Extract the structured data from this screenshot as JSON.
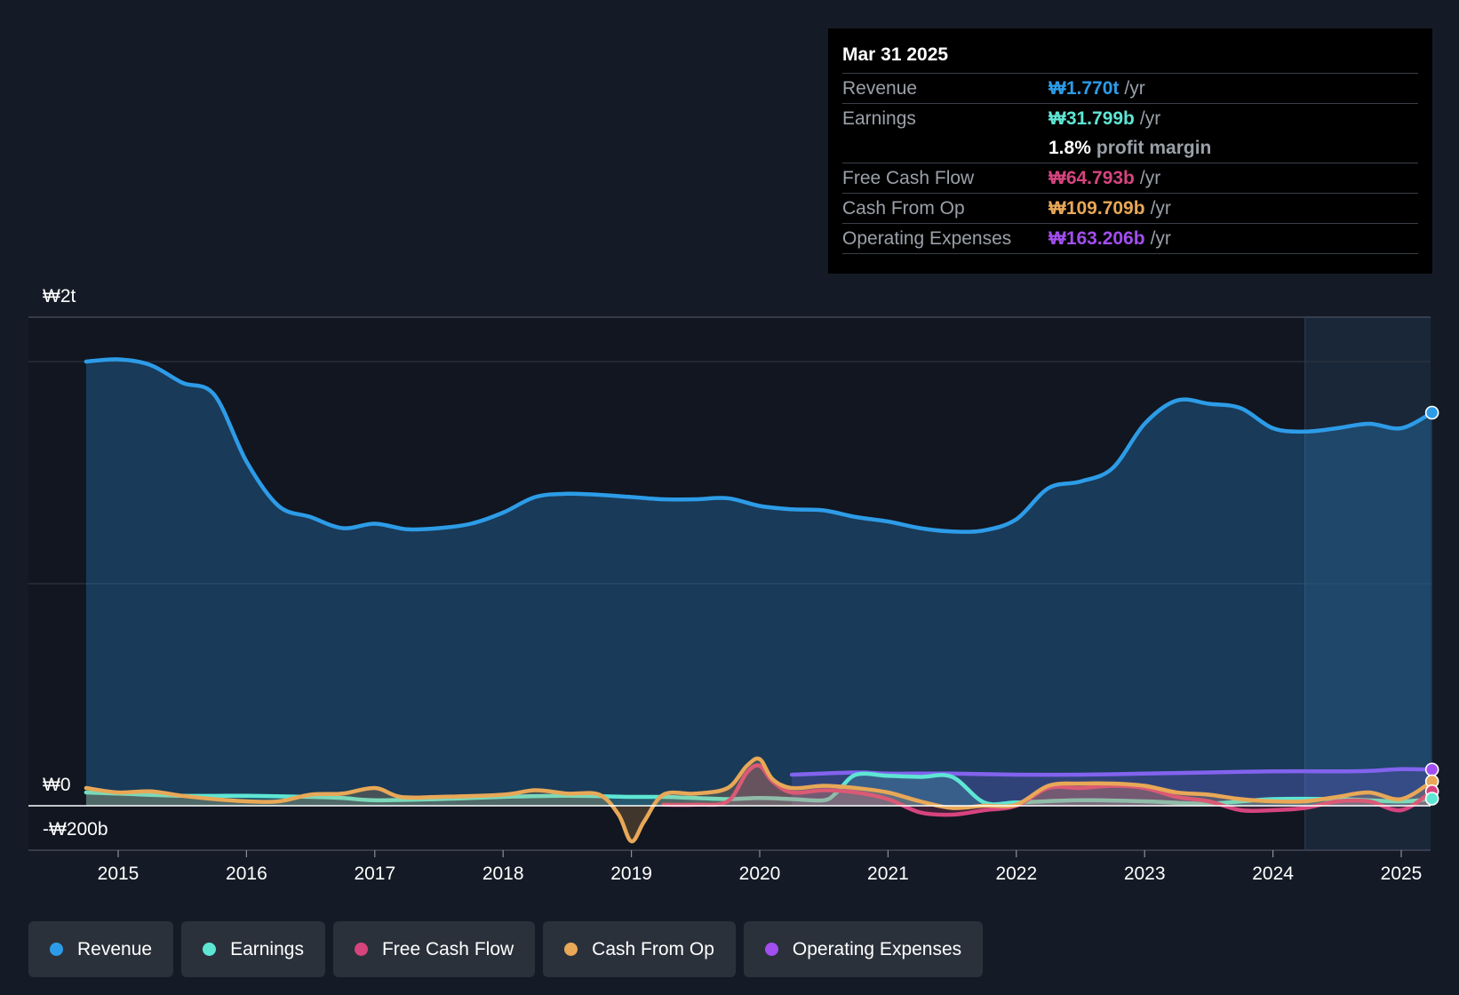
{
  "tooltip": {
    "date": "Mar 31 2025",
    "rows": [
      {
        "label": "Revenue",
        "value": "₩1.770t",
        "unit": "/yr",
        "color": "#2d9ce8"
      },
      {
        "label": "Earnings",
        "value": "₩31.799b",
        "unit": "/yr",
        "color": "#5ee6d4"
      },
      {
        "label": "",
        "value": "1.8%",
        "unit": "profit margin",
        "color": "#ffffff"
      },
      {
        "label": "Free Cash Flow",
        "value": "₩64.793b",
        "unit": "/yr",
        "color": "#d6447e"
      },
      {
        "label": "Cash From Op",
        "value": "₩109.709b",
        "unit": "/yr",
        "color": "#e8a857"
      },
      {
        "label": "Operating Expenses",
        "value": "₩163.206b",
        "unit": "/yr",
        "color": "#a24ef0"
      }
    ]
  },
  "legend": [
    {
      "label": "Revenue",
      "color": "#2d9ce8"
    },
    {
      "label": "Earnings",
      "color": "#5ee6d4"
    },
    {
      "label": "Free Cash Flow",
      "color": "#d6447e"
    },
    {
      "label": "Cash From Op",
      "color": "#e8a857"
    },
    {
      "label": "Operating Expenses",
      "color": "#a24ef0"
    }
  ],
  "chart_data": {
    "type": "line",
    "y_unit": "₩ billions",
    "ylim": [
      -200,
      2200
    ],
    "xlim": [
      2014.3,
      2025.24
    ],
    "y_tick_labels": [
      {
        "value": 2000,
        "label": "₩2t"
      },
      {
        "value": 0,
        "label": "₩0"
      },
      {
        "value": -200,
        "label": "-₩200b"
      }
    ],
    "x_ticks": [
      2015,
      2016,
      2017,
      2018,
      2019,
      2020,
      2021,
      2022,
      2023,
      2024,
      2025
    ],
    "x_tick_labels": [
      "2015",
      "2016",
      "2017",
      "2018",
      "2019",
      "2020",
      "2021",
      "2022",
      "2023",
      "2024",
      "2025"
    ],
    "forecast_shade_start": 2024.25,
    "series": [
      {
        "name": "Revenue",
        "color": "#2d9ce8",
        "area": true,
        "points": [
          [
            2014.75,
            2000
          ],
          [
            2015.0,
            2010
          ],
          [
            2015.25,
            1985
          ],
          [
            2015.5,
            1905
          ],
          [
            2015.75,
            1850
          ],
          [
            2016.0,
            1550
          ],
          [
            2016.25,
            1350
          ],
          [
            2016.5,
            1300
          ],
          [
            2016.75,
            1250
          ],
          [
            2017.0,
            1270
          ],
          [
            2017.25,
            1245
          ],
          [
            2017.5,
            1250
          ],
          [
            2017.75,
            1270
          ],
          [
            2018.0,
            1320
          ],
          [
            2018.25,
            1390
          ],
          [
            2018.5,
            1405
          ],
          [
            2018.75,
            1400
          ],
          [
            2019.0,
            1390
          ],
          [
            2019.25,
            1380
          ],
          [
            2019.5,
            1380
          ],
          [
            2019.75,
            1385
          ],
          [
            2020.0,
            1350
          ],
          [
            2020.25,
            1335
          ],
          [
            2020.5,
            1330
          ],
          [
            2020.75,
            1300
          ],
          [
            2021.0,
            1280
          ],
          [
            2021.25,
            1250
          ],
          [
            2021.5,
            1235
          ],
          [
            2021.75,
            1240
          ],
          [
            2022.0,
            1290
          ],
          [
            2022.25,
            1430
          ],
          [
            2022.5,
            1460
          ],
          [
            2022.75,
            1520
          ],
          [
            2023.0,
            1720
          ],
          [
            2023.25,
            1825
          ],
          [
            2023.5,
            1810
          ],
          [
            2023.75,
            1790
          ],
          [
            2024.0,
            1700
          ],
          [
            2024.25,
            1685
          ],
          [
            2024.5,
            1700
          ],
          [
            2024.75,
            1720
          ],
          [
            2025.0,
            1700
          ],
          [
            2025.24,
            1770
          ]
        ]
      },
      {
        "name": "Earnings",
        "color": "#5ee6d4",
        "area": true,
        "points": [
          [
            2014.75,
            60
          ],
          [
            2015.0,
            55
          ],
          [
            2015.5,
            45
          ],
          [
            2016.0,
            45
          ],
          [
            2016.5,
            40
          ],
          [
            2016.75,
            35
          ],
          [
            2017.0,
            25
          ],
          [
            2017.5,
            30
          ],
          [
            2018.0,
            40
          ],
          [
            2018.5,
            45
          ],
          [
            2019.0,
            40
          ],
          [
            2019.25,
            40
          ],
          [
            2019.5,
            35
          ],
          [
            2019.75,
            30
          ],
          [
            2020.0,
            35
          ],
          [
            2020.25,
            30
          ],
          [
            2020.5,
            25
          ],
          [
            2020.6,
            60
          ],
          [
            2020.75,
            140
          ],
          [
            2021.0,
            135
          ],
          [
            2021.25,
            130
          ],
          [
            2021.5,
            130
          ],
          [
            2021.75,
            15
          ],
          [
            2022.0,
            15
          ],
          [
            2022.5,
            25
          ],
          [
            2023.0,
            20
          ],
          [
            2023.5,
            10
          ],
          [
            2024.0,
            30
          ],
          [
            2024.5,
            30
          ],
          [
            2025.0,
            20
          ],
          [
            2025.24,
            32
          ]
        ]
      },
      {
        "name": "Free Cash Flow",
        "color": "#d6447e",
        "area": true,
        "points": [
          [
            2019.25,
            5
          ],
          [
            2019.5,
            5
          ],
          [
            2019.75,
            20
          ],
          [
            2019.9,
            150
          ],
          [
            2020.0,
            180
          ],
          [
            2020.1,
            110
          ],
          [
            2020.25,
            60
          ],
          [
            2020.5,
            70
          ],
          [
            2020.75,
            60
          ],
          [
            2021.0,
            30
          ],
          [
            2021.25,
            -30
          ],
          [
            2021.5,
            -40
          ],
          [
            2021.75,
            -20
          ],
          [
            2022.0,
            0
          ],
          [
            2022.25,
            80
          ],
          [
            2022.5,
            80
          ],
          [
            2022.75,
            90
          ],
          [
            2023.0,
            80
          ],
          [
            2023.25,
            40
          ],
          [
            2023.5,
            20
          ],
          [
            2023.75,
            -20
          ],
          [
            2024.0,
            -20
          ],
          [
            2024.25,
            -10
          ],
          [
            2024.5,
            20
          ],
          [
            2024.75,
            20
          ],
          [
            2025.0,
            -20
          ],
          [
            2025.24,
            65
          ]
        ]
      },
      {
        "name": "Cash From Op",
        "color": "#e8a857",
        "area": true,
        "points": [
          [
            2014.75,
            80
          ],
          [
            2015.0,
            60
          ],
          [
            2015.25,
            65
          ],
          [
            2015.5,
            45
          ],
          [
            2015.75,
            30
          ],
          [
            2016.0,
            20
          ],
          [
            2016.25,
            20
          ],
          [
            2016.5,
            50
          ],
          [
            2016.75,
            55
          ],
          [
            2017.0,
            80
          ],
          [
            2017.2,
            40
          ],
          [
            2017.5,
            40
          ],
          [
            2018.0,
            50
          ],
          [
            2018.25,
            70
          ],
          [
            2018.5,
            55
          ],
          [
            2018.75,
            50
          ],
          [
            2018.9,
            -40
          ],
          [
            2019.0,
            -160
          ],
          [
            2019.1,
            -70
          ],
          [
            2019.25,
            50
          ],
          [
            2019.5,
            55
          ],
          [
            2019.75,
            80
          ],
          [
            2019.9,
            180
          ],
          [
            2020.0,
            210
          ],
          [
            2020.1,
            120
          ],
          [
            2020.25,
            80
          ],
          [
            2020.5,
            90
          ],
          [
            2020.75,
            80
          ],
          [
            2021.0,
            60
          ],
          [
            2021.25,
            20
          ],
          [
            2021.5,
            -10
          ],
          [
            2021.75,
            0
          ],
          [
            2022.0,
            5
          ],
          [
            2022.25,
            90
          ],
          [
            2022.5,
            100
          ],
          [
            2022.75,
            100
          ],
          [
            2023.0,
            90
          ],
          [
            2023.25,
            60
          ],
          [
            2023.5,
            50
          ],
          [
            2023.75,
            30
          ],
          [
            2024.0,
            20
          ],
          [
            2024.25,
            20
          ],
          [
            2024.5,
            40
          ],
          [
            2024.75,
            60
          ],
          [
            2025.0,
            30
          ],
          [
            2025.24,
            110
          ]
        ]
      },
      {
        "name": "Operating Expenses",
        "color": "#a24ef0",
        "area": true,
        "points": [
          [
            2020.25,
            140
          ],
          [
            2020.75,
            150
          ],
          [
            2021.0,
            145
          ],
          [
            2021.5,
            145
          ],
          [
            2022.0,
            140
          ],
          [
            2022.5,
            140
          ],
          [
            2023.0,
            145
          ],
          [
            2023.5,
            150
          ],
          [
            2024.0,
            155
          ],
          [
            2024.5,
            155
          ],
          [
            2024.75,
            157
          ],
          [
            2025.0,
            165
          ],
          [
            2025.24,
            163
          ]
        ]
      }
    ]
  }
}
